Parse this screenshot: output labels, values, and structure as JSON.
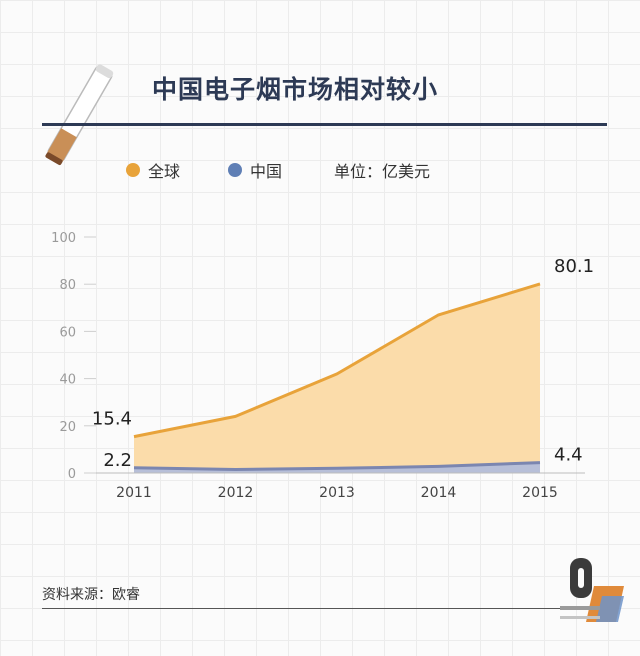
{
  "title": "中国电子烟市场相对较小",
  "legend": {
    "global_label": "全球",
    "china_label": "中国",
    "unit_label": "单位：亿美元"
  },
  "source": "资料来源：欧睿",
  "colors": {
    "global_line": "#e8a33a",
    "global_fill": "#fbdcaa",
    "china_line": "#7b86b0",
    "china_fill": "#b7bfd8",
    "title": "#2d3a55"
  },
  "chart_data": {
    "type": "area",
    "title": "中国电子烟市场相对较小",
    "x": [
      "2011",
      "2012",
      "2013",
      "2014",
      "2015"
    ],
    "series": [
      {
        "name": "全球",
        "values": [
          15.4,
          24,
          42,
          67,
          80.1
        ]
      },
      {
        "name": "中国",
        "values": [
          2.2,
          1.5,
          2,
          2.8,
          4.4
        ]
      }
    ],
    "y_ticks": [
      0,
      20,
      40,
      60,
      80,
      100
    ],
    "ylim": [
      0,
      100
    ],
    "data_labels": [
      {
        "series": "全球",
        "index": 0,
        "text": "15.4"
      },
      {
        "series": "全球",
        "index": 4,
        "text": "80.1"
      },
      {
        "series": "中国",
        "index": 0,
        "text": "2.2"
      },
      {
        "series": "中国",
        "index": 4,
        "text": "4.4"
      }
    ],
    "unit": "单位：亿美元",
    "grid": false
  }
}
